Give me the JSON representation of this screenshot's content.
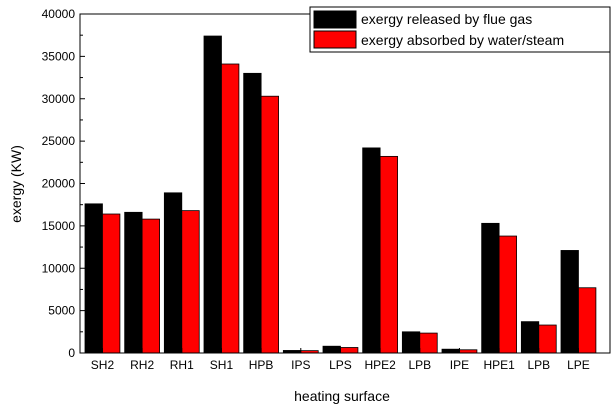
{
  "chart_data": {
    "type": "bar",
    "title": "",
    "xlabel": "heating surface",
    "ylabel": "exergy (KW)",
    "ylim": [
      0,
      40000
    ],
    "yticks": [
      0,
      5000,
      10000,
      15000,
      20000,
      25000,
      30000,
      35000,
      40000
    ],
    "categories": [
      "SH2",
      "RH2",
      "RH1",
      "SH1",
      "HPB",
      "IPS",
      "LPS",
      "HPE2",
      "LPB",
      "IPE",
      "HPE1",
      "LPB",
      "LPE"
    ],
    "series": [
      {
        "name": "exergy released by flue gas",
        "color": "#000000",
        "values": [
          17600,
          16600,
          18900,
          37400,
          33000,
          300,
          800,
          24200,
          2500,
          450,
          15300,
          3700,
          12100
        ]
      },
      {
        "name": "exergy absorbed by water/steam",
        "color": "#ff0000",
        "values": [
          16400,
          15800,
          16800,
          34100,
          30300,
          280,
          650,
          23200,
          2350,
          380,
          13800,
          3300,
          7700
        ]
      }
    ],
    "legend_position": "top-right",
    "grid": false
  }
}
